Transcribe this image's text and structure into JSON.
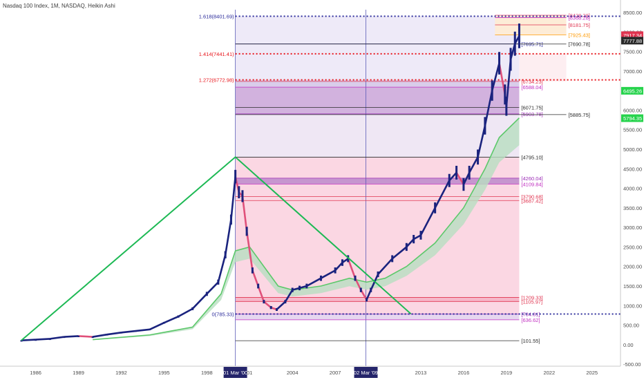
{
  "window": {
    "title": "Nasdaq 100 Index, 1M, NASDAQ, Heikin Ashi"
  },
  "colors": {
    "candle_up": "#1a237e",
    "candle_down": "#e0507a",
    "trendline": "#1db954",
    "fib_line": "#2a2a9a",
    "fib_ext": "#e8151b",
    "price_tag_red": "#e0334f",
    "price_tag_dark": "#2a2a2a",
    "price_tag_green": "#26d34c",
    "date_tag": "#25256b"
  },
  "chart_data": {
    "type": "line",
    "title": "Nasdaq 100 Index, 1M, NASDAQ, Heikin Ashi",
    "xlabel": "",
    "ylabel": "",
    "x_ticks": [
      "1986",
      "1989",
      "1992",
      "1995",
      "1998",
      "01 Mar '00",
      "01",
      "2004",
      "2007",
      "02 Mar '09",
      "2013",
      "2016",
      "2019",
      "2022",
      "2025"
    ],
    "y_ticks": [
      "8500.00",
      "8000.00",
      "7500.00",
      "7000.00",
      "6500.00",
      "6000.00",
      "5500.00",
      "5000.00",
      "4500.00",
      "4000.00",
      "3500.00",
      "3000.00",
      "2500.00",
      "2000.00",
      "1500.00",
      "1000.00",
      "500.00",
      "0.00",
      "-500.00"
    ],
    "ylim": [
      -550,
      8570
    ],
    "xlim": [
      1983.5,
      2027
    ],
    "series": [
      {
        "values_x": [
          1985.0,
          1986.0,
          1987.0,
          1988.0,
          1989.0,
          1990.0,
          1991.0,
          1992.0,
          1993.0,
          1994.0,
          1995.0,
          1996.0,
          1997.0,
          1998.0,
          1998.8,
          1999.3,
          1999.7,
          2000.0,
          2000.25,
          2000.5,
          2000.8,
          2001.2,
          2001.6,
          2002.0,
          2002.5,
          2002.9,
          2003.5,
          2004.0,
          2004.5,
          2005.0,
          2006.0,
          2007.0,
          2007.5,
          2007.9,
          2008.4,
          2008.8,
          2009.2,
          2009.5,
          2010.0,
          2011.0,
          2012.0,
          2012.5,
          2013.0,
          2014.0,
          2015.0,
          2015.5,
          2016.0,
          2016.4,
          2017.0,
          2017.5,
          2018.0,
          2018.5,
          2018.9,
          2019.0,
          2019.3,
          2019.6,
          2019.9
        ],
        "values": [
          110,
          130,
          150,
          200,
          220,
          200,
          260,
          310,
          350,
          390,
          560,
          720,
          920,
          1300,
          1600,
          2300,
          3200,
          4300,
          3900,
          3800,
          2900,
          1900,
          1500,
          1100,
          950,
          900,
          1100,
          1400,
          1450,
          1500,
          1700,
          1900,
          2100,
          2200,
          1700,
          1400,
          1150,
          1400,
          1800,
          2200,
          2500,
          2700,
          2800,
          3500,
          4200,
          4400,
          4100,
          4400,
          4800,
          5600,
          6500,
          7200,
          6400,
          6100,
          7300,
          7700,
          7900
        ]
      }
    ],
    "levels": [
      {
        "label": "1.618(8401.69)",
        "value": 8401.69,
        "kind": "fib-ext"
      },
      {
        "label": "1.414(7441.41)",
        "value": 7441.41,
        "kind": "fib-ext"
      },
      {
        "label": "1.272(6772.98)",
        "value": 6772.98,
        "kind": "fib-ext"
      },
      {
        "label": "0(785.33)",
        "value": 785.33,
        "kind": "fib-ext"
      }
    ],
    "box_labels": [
      {
        "label": "[8428.28]",
        "value": 8428.28,
        "color": "#e0507a"
      },
      {
        "label": "[8368.28]",
        "value": 8368.28,
        "color": "#c02cc0"
      },
      {
        "label": "[8181.75]",
        "value": 8181.75,
        "color": "#e0334f"
      },
      {
        "label": "[7925.43]",
        "value": 7925.43,
        "color": "#ff9900"
      },
      {
        "label": "[7695.71]",
        "value": 7695.71,
        "color": "#2a2a9a"
      },
      {
        "label": "[7690.78]",
        "value": 7690.78,
        "color": "#2a2a2a"
      },
      {
        "label": "[6734.23]",
        "value": 6734.23,
        "color": "#e0334f"
      },
      {
        "label": "[6588.04]",
        "value": 6588.04,
        "color": "#c02cc0"
      },
      {
        "label": "[6071.75]",
        "value": 6071.75,
        "color": "#2a2a2a"
      },
      {
        "label": "[5903.78]",
        "value": 5903.78,
        "color": "#9b2bb6"
      },
      {
        "label": "[5885.75]",
        "value": 5885.75,
        "color": "#2a2a2a"
      },
      {
        "label": "[4795.10]",
        "value": 4795.1,
        "color": "#2a2a2a"
      },
      {
        "label": "[4260.04]",
        "value": 4260.04,
        "color": "#9b2bb6"
      },
      {
        "label": "[4109.84]",
        "value": 4109.84,
        "color": "#c02cc0"
      },
      {
        "label": "[3790.68]",
        "value": 3790.68,
        "color": "#e0334f"
      },
      {
        "label": "[3687.42]",
        "value": 3687.42,
        "color": "#e0334f"
      },
      {
        "label": "[1209.33]",
        "value": 1209.33,
        "color": "#e0334f"
      },
      {
        "label": "[1105.97]",
        "value": 1105.97,
        "color": "#e0334f"
      },
      {
        "label": "[784.81]",
        "value": 784.81,
        "color": "#9b2bb6"
      },
      {
        "label": "[636.62]",
        "value": 636.62,
        "color": "#c02cc0"
      },
      {
        "label": "[101.55]",
        "value": 101.55,
        "color": "#2a2a2a"
      }
    ],
    "price_tags": [
      {
        "label": "7917.34",
        "value": 7917.34,
        "color": "#e0334f"
      },
      {
        "label": "7777.88",
        "value": 7777.88,
        "color": "#2a2a2a"
      },
      {
        "label": "6495.26",
        "value": 6495.26,
        "color": "#26d34c"
      },
      {
        "label": "5794.35",
        "value": 5794.35,
        "color": "#26d34c"
      }
    ],
    "trendlines": [
      {
        "points": [
          [
            1985.0,
            110
          ],
          [
            2000.0,
            4800
          ],
          [
            2012.3,
            790
          ]
        ]
      }
    ]
  }
}
